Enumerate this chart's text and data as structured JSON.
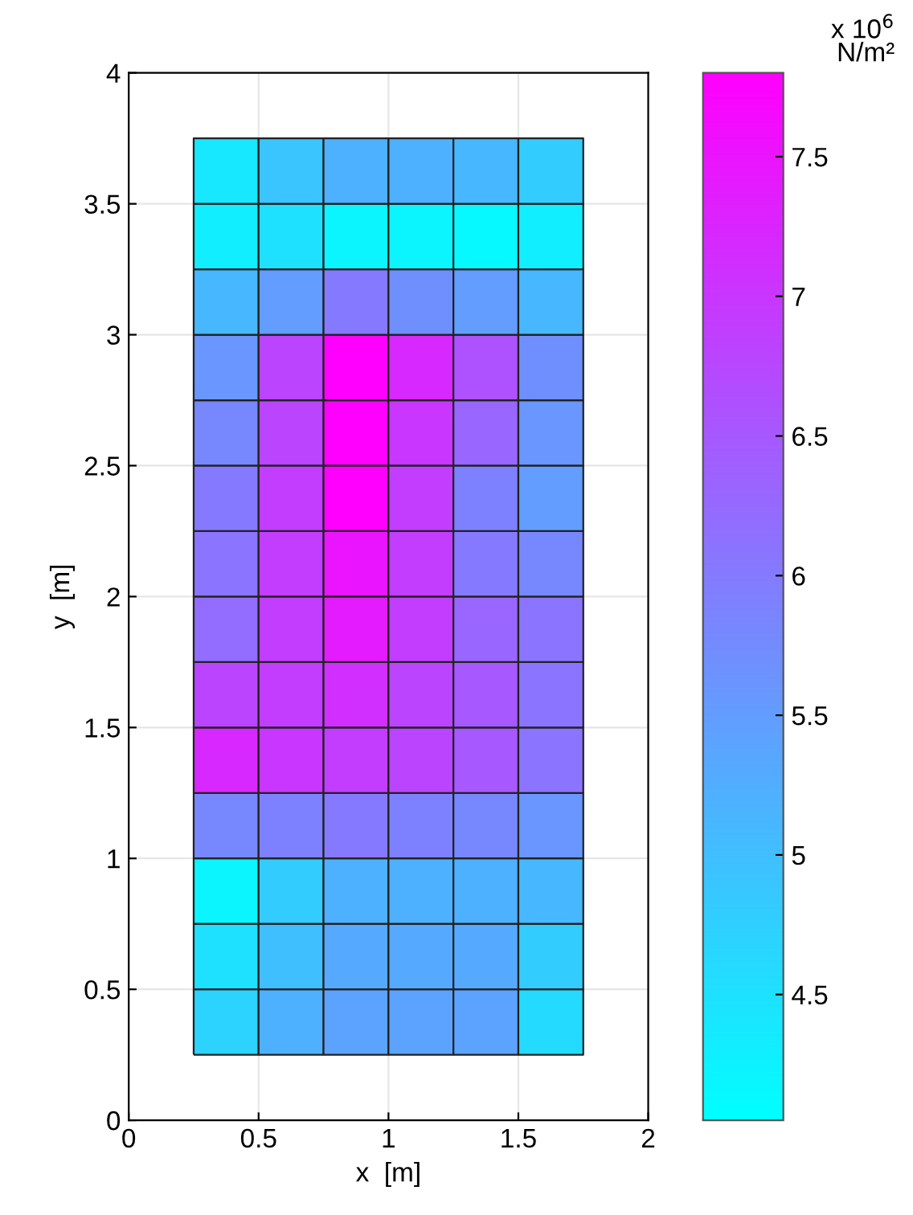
{
  "chart_data": {
    "type": "heatmap",
    "xlabel": "x  [m]",
    "ylabel": "y  [m]",
    "clabel": "x 10$^{6}$\nN/m²",
    "x": [
      0.375,
      0.625,
      0.875,
      1.125,
      1.375,
      1.625
    ],
    "y": [
      3.625,
      3.375,
      3.125,
      2.875,
      2.625,
      2.375,
      2.125,
      1.875,
      1.625,
      1.375,
      1.125,
      0.875,
      0.625,
      0.375
    ],
    "cells": [
      [
        4.4,
        4.9,
        5.2,
        5.2,
        5.1,
        4.8
      ],
      [
        4.3,
        4.5,
        4.2,
        4.2,
        4.15,
        4.3
      ],
      [
        5.1,
        5.5,
        6.0,
        5.7,
        5.5,
        5.1
      ],
      [
        5.6,
        6.8,
        7.8,
        7.2,
        6.6,
        5.7
      ],
      [
        5.8,
        6.8,
        7.8,
        7.0,
        6.3,
        5.6
      ],
      [
        6.0,
        6.9,
        7.8,
        6.9,
        5.9,
        5.5
      ],
      [
        6.1,
        6.9,
        7.5,
        6.9,
        6.0,
        5.8
      ],
      [
        6.2,
        6.9,
        7.4,
        6.9,
        6.3,
        6.1
      ],
      [
        6.8,
        6.9,
        7.1,
        6.8,
        6.5,
        6.1
      ],
      [
        7.2,
        7.0,
        6.9,
        6.8,
        6.5,
        6.1
      ],
      [
        5.8,
        5.9,
        6.0,
        5.9,
        5.8,
        5.6
      ],
      [
        4.2,
        4.8,
        5.2,
        5.2,
        5.2,
        5.1
      ],
      [
        4.5,
        5.0,
        5.3,
        5.3,
        5.3,
        4.8
      ],
      [
        4.7,
        5.2,
        5.4,
        5.4,
        5.4,
        4.6
      ]
    ],
    "xlim": [
      0,
      2
    ],
    "ylim": [
      0,
      4
    ],
    "xticks": [
      0,
      0.5,
      1,
      1.5,
      2
    ],
    "yticks": [
      0,
      0.5,
      1,
      1.5,
      2,
      2.5,
      3,
      3.5,
      4
    ],
    "clim": [
      4.05,
      7.8
    ],
    "cticks": [
      4.5,
      5,
      5.5,
      6,
      6.5,
      7,
      7.5
    ],
    "grid": true
  }
}
